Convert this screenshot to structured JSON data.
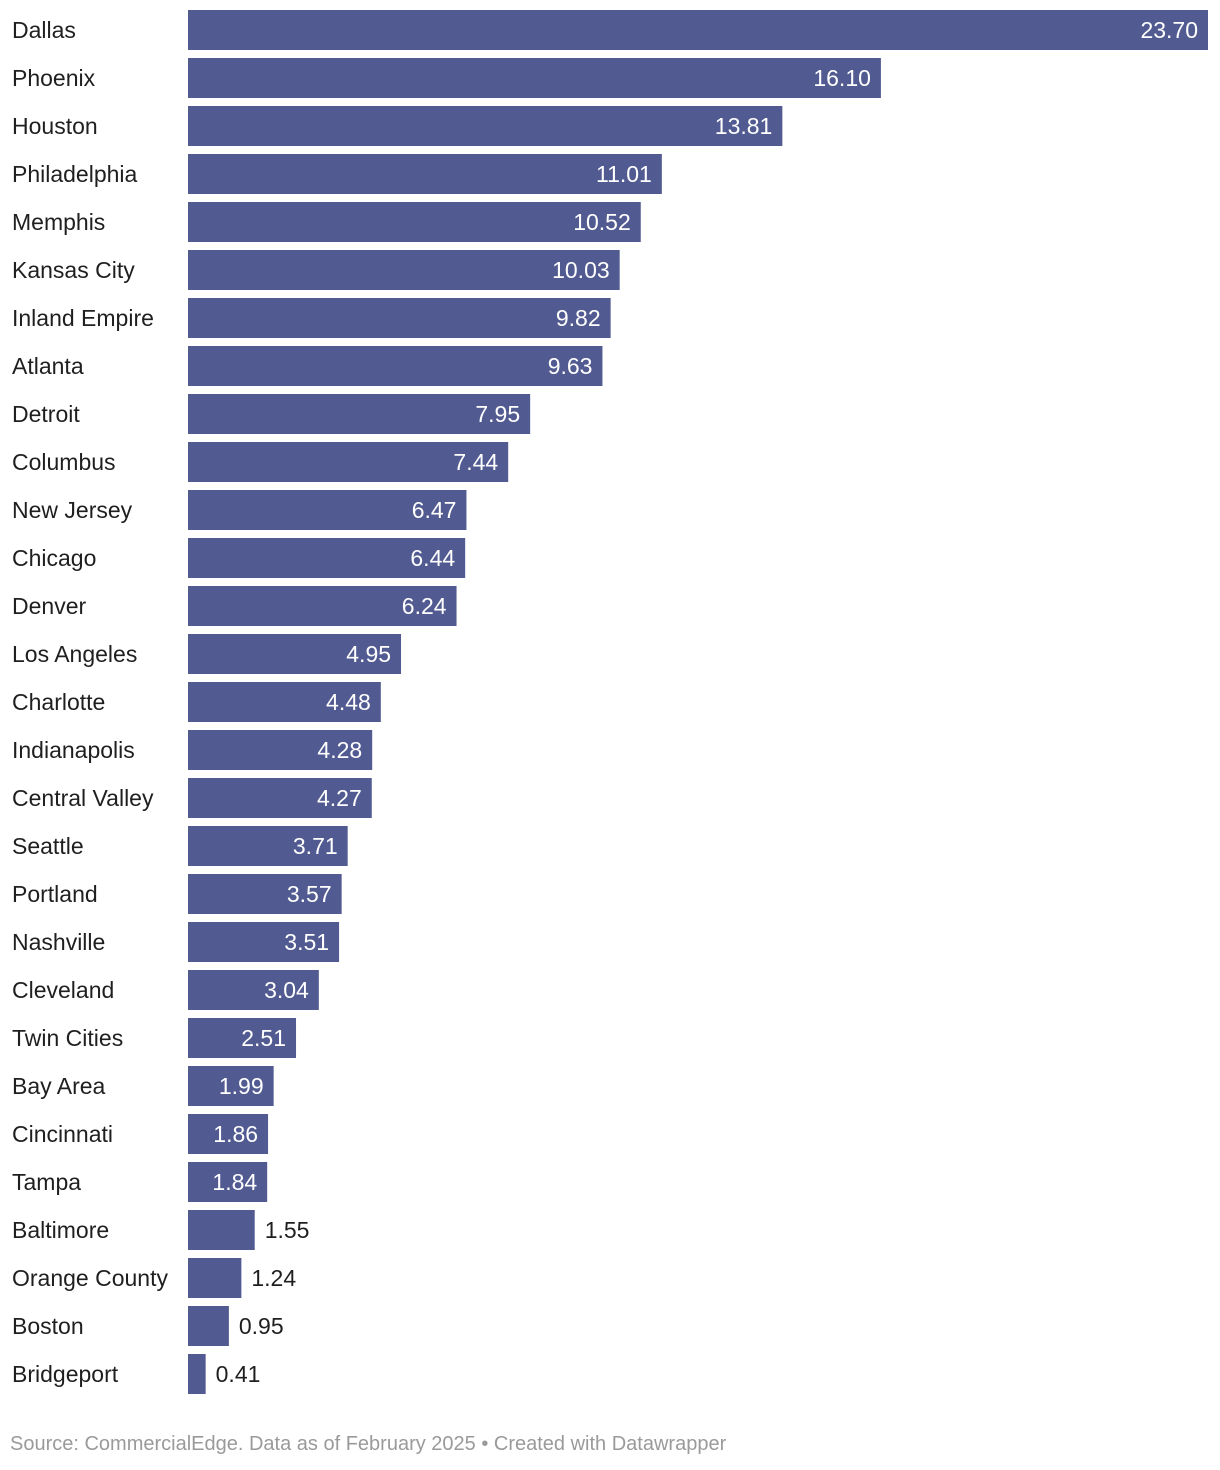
{
  "colors": {
    "bar": "#525b91",
    "label_inside": "#ffffff",
    "label_outside": "#1f1f1f",
    "category_text": "#1f1f1f",
    "footer_text": "#9a9a9a"
  },
  "footer": {
    "text": "Source: CommercialEdge. Data as of February 2025 • Created with Datawrapper"
  },
  "chart_data": {
    "type": "bar",
    "orientation": "horizontal",
    "title": "",
    "xlabel": "",
    "ylabel": "",
    "grid": false,
    "legend": "none",
    "xlim": [
      0,
      23.7
    ],
    "categories": [
      "Dallas",
      "Phoenix",
      "Houston",
      "Philadelphia",
      "Memphis",
      "Kansas City",
      "Inland Empire",
      "Atlanta",
      "Detroit",
      "Columbus",
      "New Jersey",
      "Chicago",
      "Denver",
      "Los Angeles",
      "Charlotte",
      "Indianapolis",
      "Central Valley",
      "Seattle",
      "Portland",
      "Nashville",
      "Cleveland",
      "Twin Cities",
      "Bay Area",
      "Cincinnati",
      "Tampa",
      "Baltimore",
      "Orange County",
      "Boston",
      "Bridgeport"
    ],
    "values": [
      23.7,
      16.1,
      13.81,
      11.01,
      10.52,
      10.03,
      9.82,
      9.63,
      7.95,
      7.44,
      6.47,
      6.44,
      6.24,
      4.95,
      4.48,
      4.28,
      4.27,
      3.71,
      3.57,
      3.51,
      3.04,
      2.51,
      1.99,
      1.86,
      1.84,
      1.55,
      1.24,
      0.95,
      0.41
    ],
    "value_labels": [
      "23.70",
      "16.10",
      "13.81",
      "11.01",
      "10.52",
      "10.03",
      "9.82",
      "9.63",
      "7.95",
      "7.44",
      "6.47",
      "6.44",
      "6.24",
      "4.95",
      "4.48",
      "4.28",
      "4.27",
      "3.71",
      "3.57",
      "3.51",
      "3.04",
      "2.51",
      "1.99",
      "1.86",
      "1.84",
      "1.55",
      "1.24",
      "0.95",
      "0.41"
    ]
  }
}
